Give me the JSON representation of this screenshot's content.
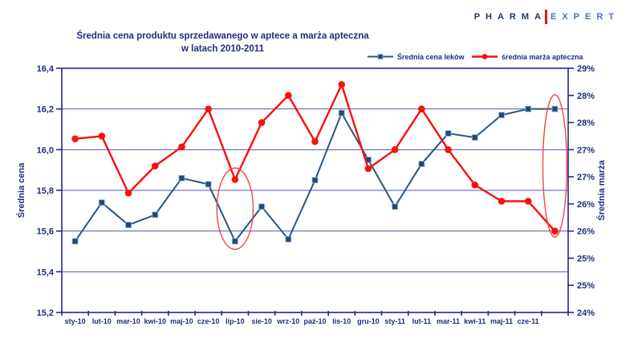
{
  "colors": {
    "navy_text": "#1D2F7C",
    "brand_navy": "#1F3864",
    "brand_blue": "#4472C4",
    "logo_red": "#E8112D"
  },
  "logo": {
    "brand_left": "PHARMA",
    "brand_right": "EXPERT"
  },
  "title": {
    "line1": "Średnia cena produktu sprzedawanego  w aptece a marża apteczna",
    "line2": "w latach 2010-2011"
  },
  "chart_data": {
    "type": "line",
    "title": "Średnia cena produktu sprzedawanego w aptece a marża apteczna w latach 2010-2011",
    "categories": [
      "sty-10",
      "lut-10",
      "mar-10",
      "kwi-10",
      "maj-10",
      "cze-10",
      "lip-10",
      "sie-10",
      "wrz-10",
      "paź-10",
      "lis-10",
      "gru-10",
      "sty-11",
      "lut-11",
      "mar-11",
      "kwi-11",
      "maj-11",
      "cze-11",
      ""
    ],
    "series": [
      {
        "name": "Średnia cena leków",
        "axis": "left",
        "marker": "square",
        "color": "#2A5481",
        "marker_fill": "#1F4978",
        "marker_stroke": "#9DB8D8",
        "line_width": 2,
        "values": [
          15.55,
          15.74,
          15.63,
          15.68,
          15.86,
          15.83,
          15.55,
          15.72,
          15.56,
          15.85,
          16.18,
          15.95,
          15.72,
          15.93,
          16.08,
          16.06,
          16.17,
          16.2,
          16.2
        ]
      },
      {
        "name": "średnia marża apteczna",
        "axis": "right",
        "marker": "circle",
        "color": "#FA0F0F",
        "marker_fill": "#FA0F0F",
        "marker_stroke": "none",
        "line_width": 2.4,
        "values": [
          27.2,
          27.25,
          26.2,
          26.7,
          27.05,
          27.75,
          26.45,
          27.5,
          28.0,
          27.15,
          28.2,
          26.65,
          27.0,
          27.75,
          27.0,
          26.35,
          26.05,
          26.05,
          25.5
        ]
      }
    ],
    "left_axis": {
      "title": "Średnia cena",
      "min": 15.2,
      "max": 16.4,
      "step": 0.2,
      "tick_labels_top_to_bottom": [
        "16,4",
        "16,2",
        "16,0",
        "15,8",
        "15,6",
        "15,4",
        "15,2"
      ]
    },
    "right_axis": {
      "title": "Średnia marża",
      "min": 24,
      "max": 28.5,
      "step": 0.5,
      "tick_labels_top_to_bottom": [
        "29%",
        "28%",
        "28%",
        "27%",
        "27%",
        "26%",
        "26%",
        "25%",
        "25%",
        "24%"
      ]
    },
    "legend": {
      "position": "top-right"
    },
    "grid": "horizontal",
    "annotations": [
      {
        "type": "ellipse",
        "category_index": 6,
        "center_left_value": 15.71,
        "half_height_left_value": 0.2,
        "half_width_categories": 0.68
      },
      {
        "type": "ellipse",
        "category_index": 18,
        "center_left_value": 15.92,
        "half_height_left_value": 0.35,
        "half_width_categories": 0.45
      }
    ],
    "style_colors": {
      "axis": "#26268C",
      "grid": "#5353B5",
      "text": "#1D2F7C",
      "annotation": "#F4453C"
    }
  }
}
